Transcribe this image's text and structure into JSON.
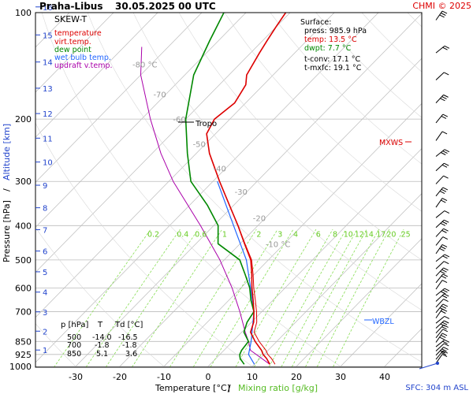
{
  "header": {
    "station": "Praha-Libus",
    "datetime": "30.05.2025 00 UTC",
    "credit": "CHMI © 2025"
  },
  "legend": {
    "title": "SKEW-T",
    "items": [
      {
        "label": "temperature",
        "color": "#dd0000"
      },
      {
        "label": "virt.temp.",
        "color": "#dd0000"
      },
      {
        "label": "dew point",
        "color": "#008800"
      },
      {
        "label": "wet bulb temp.",
        "color": "#2266ff"
      },
      {
        "label": "updraft v.temp.",
        "color": "#aa00aa"
      }
    ]
  },
  "surface": {
    "title": "Surface:",
    "lines": [
      {
        "text": "press: 985.9 hPa",
        "color": "#000000"
      },
      {
        "text": "temp: 13.5 °C",
        "color": "#dd0000"
      },
      {
        "text": "dwpt: 7.7 °C",
        "color": "#008800"
      },
      {
        "text": "t-conv: 17.1 °C",
        "color": "#000000"
      },
      {
        "text": "t-mxfc: 19.1 °C",
        "color": "#000000"
      }
    ]
  },
  "table": {
    "headers": [
      "p [hPa]",
      "T",
      "Td [°C]"
    ],
    "rows": [
      [
        "500",
        "-14.0",
        "-16.5"
      ],
      [
        "700",
        "-1.8",
        "-1.8"
      ],
      [
        "850",
        "5.1",
        "3.6"
      ]
    ]
  },
  "annotations": {
    "tropo": "Tropo",
    "mxws": "MXWS",
    "wbzl": "WBZL",
    "sfc": "SFC: 304 m ASL"
  },
  "axes": {
    "xlabel_temp": "Temperature [°C]",
    "xlabel_sep": "/",
    "xlabel_mix": "Mixing ratio [g/kg]",
    "ylabel_pressure": "Pressure [hPa]",
    "ylabel_sep": "/",
    "ylabel_altitude": "Altitude [km]"
  },
  "colors": {
    "temperature": "#dd0000",
    "dewpoint": "#008800",
    "wetbulb": "#2266ff",
    "updraft": "#aa00aa",
    "mixing": "#88dd55",
    "grid": "#bbbbbb",
    "altitude": "#2244cc",
    "mxws": "#dd0000"
  },
  "chart_data": {
    "type": "skew-t",
    "pressure_ticks": [
      "100",
      "200",
      "300",
      "400",
      "500",
      "600",
      "700",
      "850",
      "925",
      "1000"
    ],
    "temperature_ticks": [
      "-30",
      "-20",
      "-10",
      "0",
      "10",
      "20",
      "30",
      "40"
    ],
    "altitude_km_ticks": [
      "1",
      "2",
      "3",
      "4",
      "5",
      "6",
      "7",
      "8",
      "9",
      "10",
      "11",
      "12",
      "13",
      "14",
      "15",
      "16"
    ],
    "isotherm_labels": [
      "-80 °C",
      "-70",
      "-60",
      "-50",
      "-40",
      "-30",
      "-20",
      "-10 °C"
    ],
    "mixing_ratio_labels": [
      "0.2",
      "0.4",
      "0.6",
      "1",
      "2",
      "3",
      "4",
      "6",
      "8",
      "10",
      "12",
      "14",
      "17",
      "20",
      "25"
    ],
    "temperature_profile": [
      {
        "p": 986,
        "t": 13.5
      },
      {
        "p": 950,
        "t": 11.5
      },
      {
        "p": 925,
        "t": 9.8
      },
      {
        "p": 900,
        "t": 8.5
      },
      {
        "p": 850,
        "t": 5.1
      },
      {
        "p": 800,
        "t": 2.0
      },
      {
        "p": 750,
        "t": 0.5
      },
      {
        "p": 700,
        "t": -1.8
      },
      {
        "p": 650,
        "t": -4.5
      },
      {
        "p": 600,
        "t": -7.5
      },
      {
        "p": 550,
        "t": -10.5
      },
      {
        "p": 500,
        "t": -14.0
      },
      {
        "p": 450,
        "t": -19.0
      },
      {
        "p": 400,
        "t": -24.5
      },
      {
        "p": 350,
        "t": -31.0
      },
      {
        "p": 300,
        "t": -38.5
      },
      {
        "p": 250,
        "t": -47.0
      },
      {
        "p": 220,
        "t": -52.0
      },
      {
        "p": 200,
        "t": -53.5
      },
      {
        "p": 180,
        "t": -52.5
      },
      {
        "p": 160,
        "t": -54.0
      },
      {
        "p": 150,
        "t": -56.0
      },
      {
        "p": 130,
        "t": -58.0
      },
      {
        "p": 120,
        "t": -59.0
      },
      {
        "p": 110,
        "t": -60.0
      },
      {
        "p": 100,
        "t": -61.0
      }
    ],
    "dewpoint_profile": [
      {
        "p": 986,
        "t": 7.7
      },
      {
        "p": 950,
        "t": 5.5
      },
      {
        "p": 925,
        "t": 4.5
      },
      {
        "p": 900,
        "t": 4.0
      },
      {
        "p": 850,
        "t": 3.6
      },
      {
        "p": 800,
        "t": 0.5
      },
      {
        "p": 750,
        "t": -1.0
      },
      {
        "p": 700,
        "t": -1.8
      },
      {
        "p": 650,
        "t": -5.0
      },
      {
        "p": 600,
        "t": -8.0
      },
      {
        "p": 550,
        "t": -12.0
      },
      {
        "p": 500,
        "t": -16.5
      },
      {
        "p": 450,
        "t": -25.0
      },
      {
        "p": 400,
        "t": -29.0
      },
      {
        "p": 350,
        "t": -36.0
      },
      {
        "p": 300,
        "t": -45.0
      },
      {
        "p": 250,
        "t": -52.0
      },
      {
        "p": 200,
        "t": -60.0
      },
      {
        "p": 150,
        "t": -68.0
      },
      {
        "p": 120,
        "t": -72.0
      },
      {
        "p": 100,
        "t": -75.0
      }
    ],
    "wetbulb_profile": [
      {
        "p": 986,
        "t": 10.0
      },
      {
        "p": 925,
        "t": 6.5
      },
      {
        "p": 850,
        "t": 4.2
      },
      {
        "p": 700,
        "t": -1.8
      },
      {
        "p": 600,
        "t": -7.8
      },
      {
        "p": 500,
        "t": -15.0
      },
      {
        "p": 400,
        "t": -25.5
      },
      {
        "p": 300,
        "t": -39.0
      }
    ],
    "updraft_profile": [
      {
        "p": 986,
        "t": 13.5
      },
      {
        "p": 900,
        "t": 6.0
      },
      {
        "p": 850,
        "t": 3.6
      },
      {
        "p": 800,
        "t": 0.8
      },
      {
        "p": 700,
        "t": -5.0
      },
      {
        "p": 600,
        "t": -12.0
      },
      {
        "p": 500,
        "t": -21.0
      },
      {
        "p": 400,
        "t": -33.0
      },
      {
        "p": 300,
        "t": -49.0
      },
      {
        "p": 250,
        "t": -58.0
      },
      {
        "p": 200,
        "t": -68.0
      },
      {
        "p": 150,
        "t": -80.0
      },
      {
        "p": 125,
        "t": -86.0
      }
    ],
    "tropopause_p": 200,
    "mxws_p": 228,
    "wbzl_p": 730
  }
}
